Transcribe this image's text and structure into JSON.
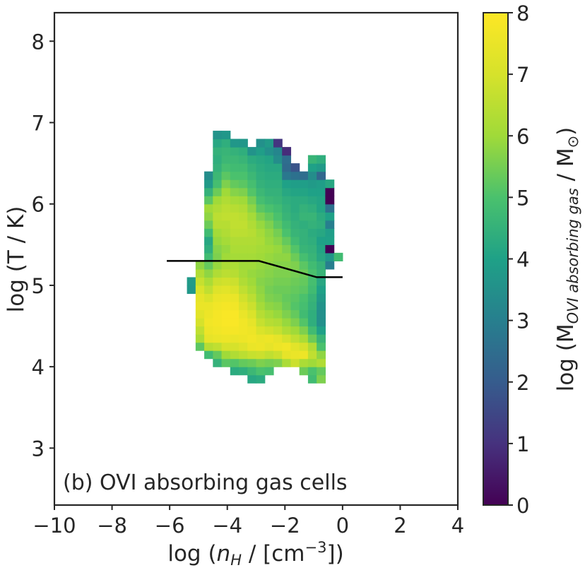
{
  "chart_data": {
    "type": "heatmap",
    "title": "",
    "annotation": "(b) OVI absorbing gas cells",
    "xlabel": {
      "main": "log (",
      "italic": "n",
      "sub": "H",
      "unit": " / [cm",
      "sup": "−3",
      "close": "])"
    },
    "ylabel": "log (T / K)",
    "xlim": [
      -10,
      4
    ],
    "ylim": [
      2.3,
      8.35
    ],
    "xticks": [
      -10,
      -8,
      -6,
      -4,
      -2,
      0,
      2,
      4
    ],
    "xtick_labels": [
      "−10",
      "−8",
      "−6",
      "−4",
      "−2",
      "0",
      "2",
      "4"
    ],
    "yticks": [
      3,
      4,
      5,
      6,
      7,
      8
    ],
    "ytick_labels": [
      "3",
      "4",
      "5",
      "6",
      "7",
      "8"
    ],
    "colorbar": {
      "label": {
        "main": "log (M",
        "sub": "OVI absorbing gas",
        "tail": " / M",
        "sun": "⊙",
        "close": ")"
      },
      "colormap": "viridis",
      "range": [
        0,
        8
      ],
      "ticks": [
        0,
        1,
        2,
        3,
        4,
        5,
        6,
        7,
        8
      ],
      "tick_labels": [
        "0",
        "1",
        "2",
        "3",
        "4",
        "5",
        "6",
        "7",
        "8"
      ]
    },
    "grid": false,
    "bin": {
      "dx": 0.3,
      "dy": 0.1
    },
    "line": {
      "x": [
        -6.1,
        -2.9,
        -0.9,
        0.0
      ],
      "y": [
        5.3,
        5.3,
        5.1,
        5.1
      ],
      "color": "#000000"
    },
    "columns": [
      {
        "x": -5.4,
        "y_start": 4.9,
        "values": [
          3.7,
          3.8
        ]
      },
      {
        "x": -5.1,
        "y_start": 4.2,
        "values": [
          5.2,
          6.2,
          6.6,
          7.0,
          7.3,
          7.5,
          7.4,
          7.1,
          6.7,
          6.3,
          5.8
        ]
      },
      {
        "x": -4.8,
        "y_start": 4.1,
        "values": [
          4.8,
          6.4,
          7.4,
          7.6,
          7.7,
          7.6,
          7.5,
          7.1,
          6.6,
          6.2,
          5.8,
          5.3,
          4.8,
          4.4,
          4.2,
          4.8,
          5.4,
          5.8,
          6.0,
          5.2,
          4.5,
          3.8,
          3.4
        ]
      },
      {
        "x": -4.5,
        "y_start": 4.0,
        "values": [
          4.5,
          5.3,
          6.6,
          7.5,
          7.7,
          7.8,
          7.8,
          7.7,
          7.5,
          7.2,
          6.8,
          6.3,
          5.9,
          5.6,
          5.7,
          5.9,
          6.1,
          6.4,
          6.5,
          6.3,
          6.0,
          5.4,
          4.9,
          4.7,
          4.5,
          4.4,
          4.5,
          4.2,
          3.6
        ]
      },
      {
        "x": -4.2,
        "y_start": 4.0,
        "values": [
          5.2,
          6.0,
          7.0,
          7.6,
          7.8,
          7.9,
          7.9,
          7.8,
          7.6,
          7.3,
          6.9,
          6.5,
          6.2,
          6.0,
          5.9,
          6.1,
          6.3,
          6.4,
          6.6,
          6.5,
          6.3,
          6.0,
          5.6,
          5.2,
          4.9,
          4.7,
          4.6,
          4.4,
          3.7
        ]
      },
      {
        "x": -3.9,
        "y_start": 3.9,
        "values": [
          4.3,
          5.1,
          6.3,
          7.0,
          7.5,
          7.8,
          7.9,
          7.9,
          7.7,
          7.5,
          7.1,
          6.8,
          6.4,
          6.2,
          6.1,
          6.2,
          6.3,
          6.5,
          6.6,
          6.6,
          6.4,
          6.1,
          5.7,
          5.3,
          5.0,
          4.8,
          4.7,
          4.5,
          3.7
        ]
      },
      {
        "x": -3.6,
        "y_start": 3.9,
        "values": [
          4.4,
          5.3,
          6.5,
          7.2,
          7.6,
          7.7,
          7.7,
          7.5,
          7.2,
          6.9,
          6.6,
          6.3,
          6.1,
          6.0,
          6.1,
          6.2,
          6.3,
          6.5,
          6.6,
          6.5,
          6.3,
          6.0,
          5.6,
          5.2,
          5.0,
          4.8,
          4.6,
          4.4,
          3.7
        ]
      },
      {
        "x": -3.3,
        "y_start": 3.8,
        "values": [
          4.2,
          4.7,
          5.4,
          6.7,
          7.5,
          7.7,
          7.6,
          7.4,
          7.1,
          6.8,
          6.5,
          6.2,
          6.0,
          5.9,
          6.0,
          6.1,
          6.2,
          6.3,
          6.4,
          6.3,
          6.1,
          5.8,
          5.5,
          5.1,
          4.9,
          4.7,
          4.5,
          4.3,
          3.6
        ]
      },
      {
        "x": -3.0,
        "y_start": 3.8,
        "values": [
          4.3,
          5.0,
          5.6,
          6.8,
          7.6,
          7.5,
          7.1,
          6.7,
          6.4,
          6.1,
          5.9,
          5.8,
          5.7,
          5.8,
          5.9,
          6.0,
          6.1,
          6.2,
          6.1,
          5.9,
          5.6,
          5.2,
          4.9,
          4.7,
          4.5,
          4.4,
          4.3,
          4.2,
          3.9,
          3.5
        ]
      },
      {
        "x": -2.7,
        "y_start": 3.9,
        "values": [
          4.9,
          5.5,
          6.6,
          7.4,
          7.6,
          6.9,
          6.4,
          6.1,
          5.8,
          5.6,
          5.5,
          5.6,
          5.7,
          5.8,
          5.9,
          6.0,
          5.9,
          5.8,
          5.6,
          5.3,
          5.0,
          4.7,
          4.5,
          4.4,
          4.3,
          4.2,
          4.1,
          3.5,
          3.8
        ]
      },
      {
        "x": -2.4,
        "y_start": 4.0,
        "values": [
          5.6,
          6.8,
          7.6,
          7.4,
          6.7,
          6.3,
          5.9,
          5.7,
          5.5,
          5.4,
          5.5,
          5.6,
          5.7,
          5.8,
          5.9,
          5.7,
          5.5,
          5.2,
          5.0,
          4.8,
          4.6,
          4.5,
          4.4,
          4.3,
          4.2,
          3.4,
          3.2,
          1.1
        ]
      },
      {
        "x": -2.1,
        "y_start": 4.0,
        "values": [
          6.2,
          7.4,
          7.7,
          7.0,
          6.3,
          5.9,
          5.6,
          5.4,
          5.3,
          5.4,
          5.5,
          5.6,
          5.7,
          5.8,
          5.6,
          5.3,
          5.0,
          4.8,
          4.6,
          4.5,
          4.4,
          4.2,
          4.0,
          2.8,
          2.4,
          2.5,
          0.9
        ]
      },
      {
        "x": -1.8,
        "y_start": 4.0,
        "values": [
          6.8,
          7.5,
          7.3,
          6.6,
          6.0,
          5.6,
          5.3,
          5.1,
          5.2,
          5.3,
          5.4,
          5.5,
          5.6,
          5.4,
          5.1,
          4.8,
          4.6,
          4.5,
          4.4,
          4.3,
          4.3,
          4.1,
          3.9,
          2.6,
          1.8
        ]
      },
      {
        "x": -1.5,
        "y_start": 3.9,
        "values": [
          5.4,
          6.2,
          7.6,
          7.0,
          6.2,
          5.6,
          5.1,
          4.8,
          4.9,
          5.0,
          5.2,
          5.3,
          5.4,
          5.2,
          4.9,
          4.6,
          4.5,
          4.5,
          4.4,
          4.6,
          4.5,
          4.3,
          4.1,
          3.9,
          2.5
        ]
      },
      {
        "x": -1.2,
        "y_start": 3.8,
        "values": [
          4.8,
          5.0,
          6.0,
          6.6,
          6.3,
          5.4,
          4.8,
          4.4,
          4.4,
          4.5,
          4.6,
          4.8,
          4.9,
          5.0,
          4.8,
          4.6,
          4.5,
          4.4,
          4.3,
          4.5,
          4.6,
          4.4,
          4.2,
          4.0,
          3.8,
          3.4,
          4.0,
          4.6
        ]
      },
      {
        "x": -0.9,
        "y_start": 3.8,
        "values": [
          5.6,
          5.3,
          6.3,
          5.8,
          5.0,
          4.6,
          4.0,
          3.5,
          3.5,
          3.6,
          3.8,
          4.0,
          4.2,
          4.6,
          4.5,
          4.2,
          4.1,
          4.0,
          4.2,
          4.4,
          4.3,
          4.1,
          4.1,
          4.0,
          3.9,
          2.3,
          3.8,
          4.4
        ]
      },
      {
        "x": -0.6,
        "y_start": 5.2,
        "values": [
          3.0,
          3.7,
          0.0,
          4.0,
          3.9,
          3.0,
          4.0,
          2.6,
          0.0,
          0.0,
          4.2
        ]
      },
      {
        "x": -0.3,
        "y_start": 5.3,
        "values": [
          4.8
        ]
      }
    ]
  }
}
